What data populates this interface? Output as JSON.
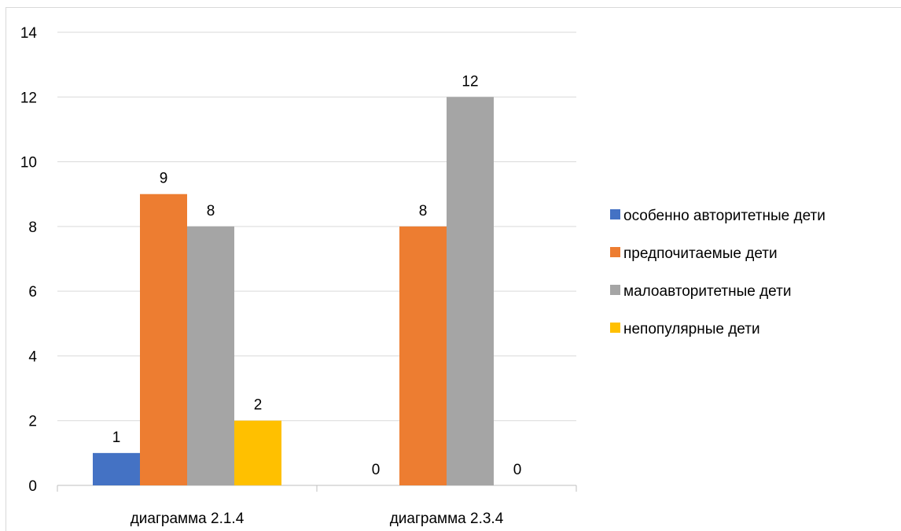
{
  "chart_data": {
    "type": "bar",
    "categories": [
      "диаграмма 2.1.4",
      "диаграмма 2.3.4"
    ],
    "series": [
      {
        "name": "особенно авторитетные дети",
        "color": "#4472c4",
        "values": [
          1,
          0
        ]
      },
      {
        "name": "предпочитаемые дети",
        "color": "#ed7d31",
        "values": [
          9,
          8
        ]
      },
      {
        "name": "малоавторитетные дети",
        "color": "#a5a5a5",
        "values": [
          8,
          12
        ]
      },
      {
        "name": "непопулярные дети",
        "color": "#ffc000",
        "values": [
          2,
          0
        ]
      }
    ],
    "ylim": [
      0,
      14
    ],
    "yticks": [
      0,
      2,
      4,
      6,
      8,
      10,
      12,
      14
    ],
    "grid": true,
    "legend": "right",
    "data_labels": true
  }
}
